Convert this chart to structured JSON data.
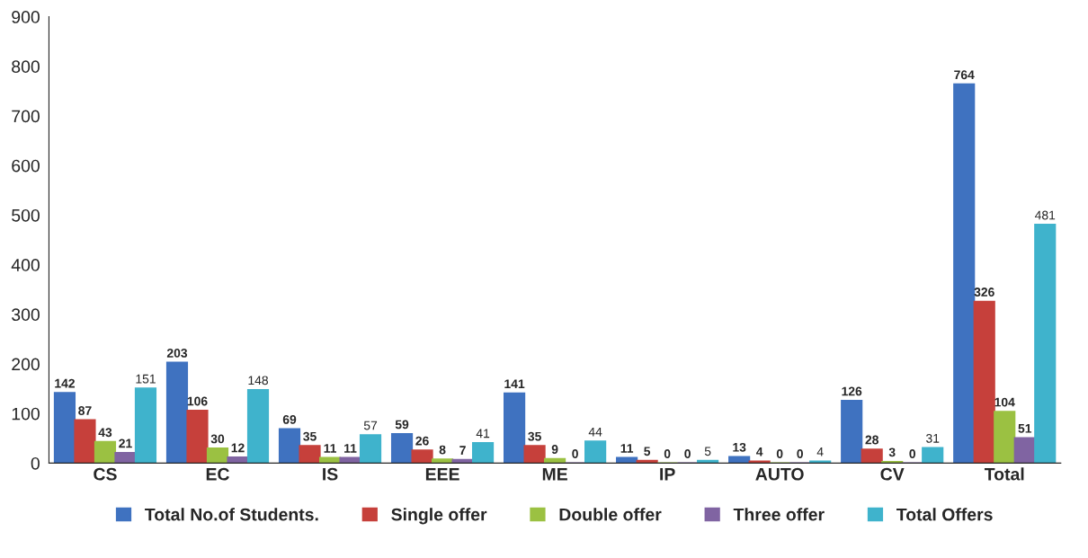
{
  "chart_data": {
    "type": "bar",
    "categories": [
      "CS",
      "EC",
      "IS",
      "EEE",
      "ME",
      "IP",
      "AUTO",
      "CV",
      "Total"
    ],
    "series": [
      {
        "name": "Total No.of Students.",
        "color": "#3f72c0",
        "values": [
          142,
          203,
          69,
          59,
          141,
          11,
          13,
          126,
          764
        ]
      },
      {
        "name": "Single offer",
        "color": "#c6403b",
        "values": [
          87,
          106,
          35,
          26,
          35,
          5,
          4,
          28,
          326
        ]
      },
      {
        "name": "Double offer",
        "color": "#9bc142",
        "values": [
          43,
          30,
          11,
          8,
          9,
          0,
          0,
          3,
          104
        ]
      },
      {
        "name": "Three offer",
        "color": "#8064a2",
        "values": [
          21,
          12,
          11,
          7,
          0,
          0,
          0,
          0,
          51
        ]
      },
      {
        "name": "Total Offers",
        "color": "#3fb3cc",
        "values": [
          151,
          148,
          57,
          41,
          44,
          5,
          4,
          31,
          481
        ]
      }
    ],
    "ylim": [
      0,
      900
    ],
    "yticks": [
      0,
      100,
      200,
      300,
      400,
      500,
      600,
      700,
      800,
      900
    ],
    "grid": false,
    "legend": "bottom",
    "data_labels": true
  }
}
